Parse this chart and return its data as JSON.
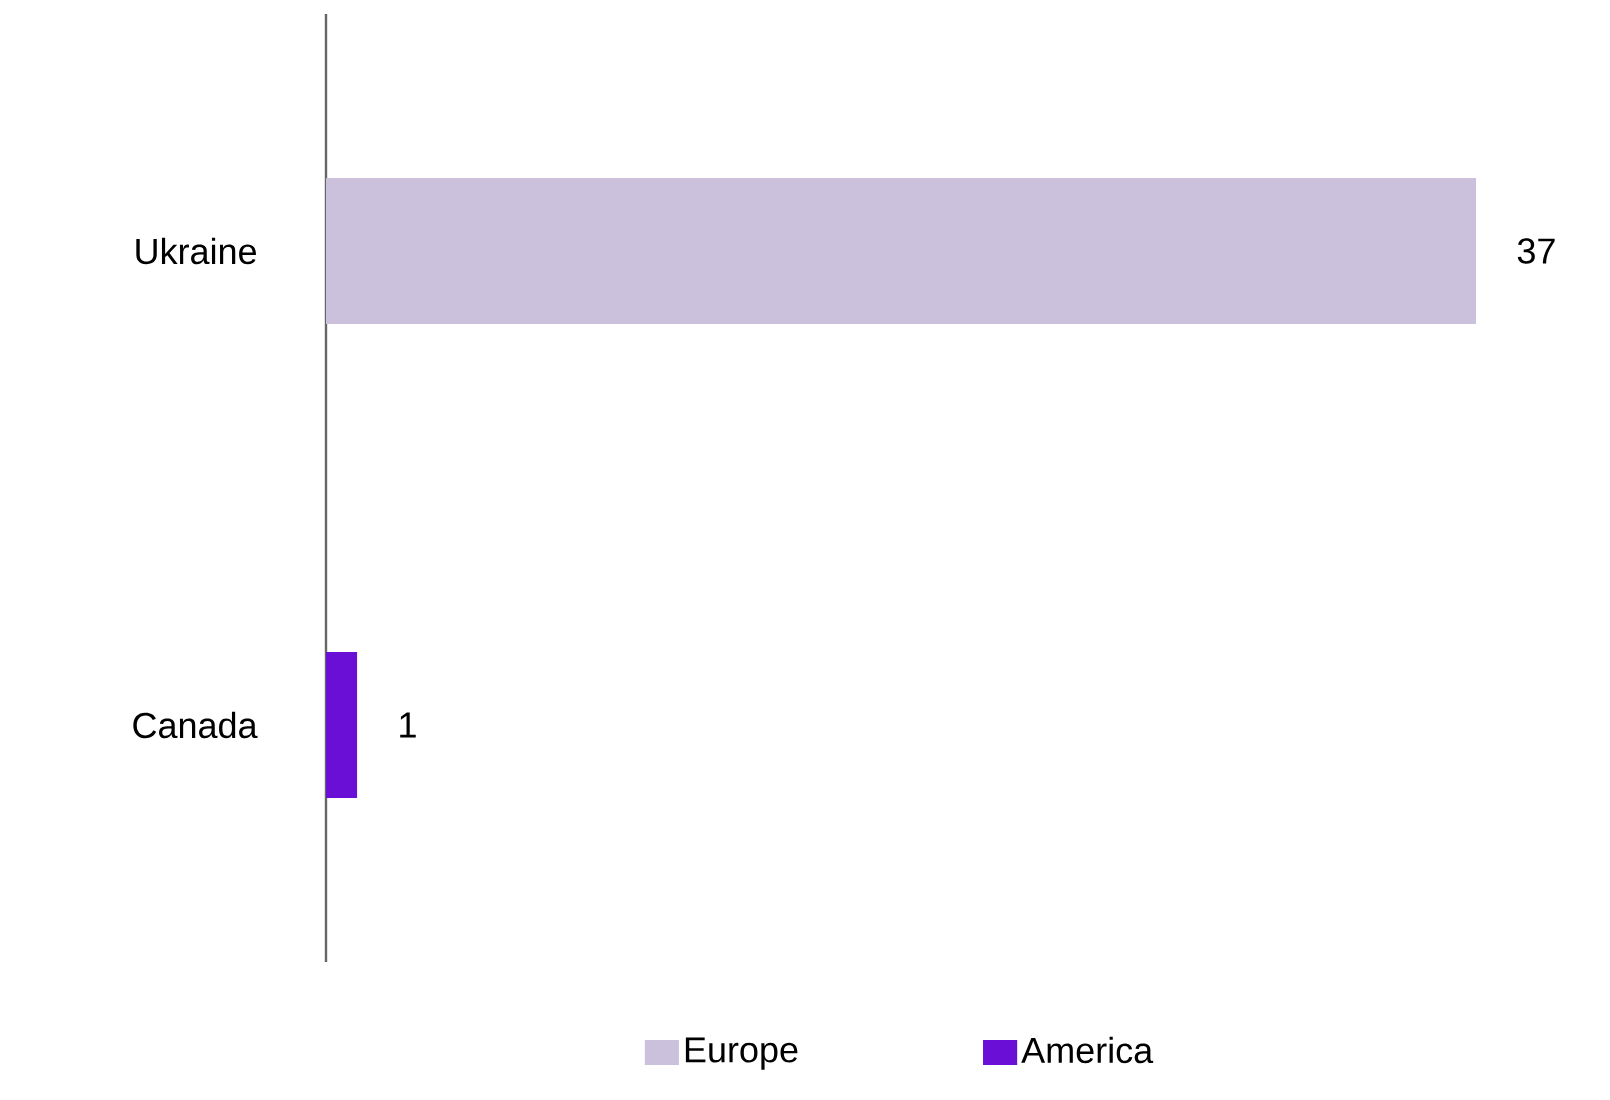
{
  "chart_data": {
    "type": "bar",
    "orientation": "horizontal",
    "categories": [
      "Ukraine",
      "Canada"
    ],
    "series": [
      {
        "name": "Europe",
        "color": "#cbc1dd",
        "values": [
          37,
          null
        ]
      },
      {
        "name": "America",
        "color": "#6a0fd6",
        "values": [
          null,
          1
        ]
      }
    ],
    "data_labels": true,
    "legend": "bottom"
  }
}
